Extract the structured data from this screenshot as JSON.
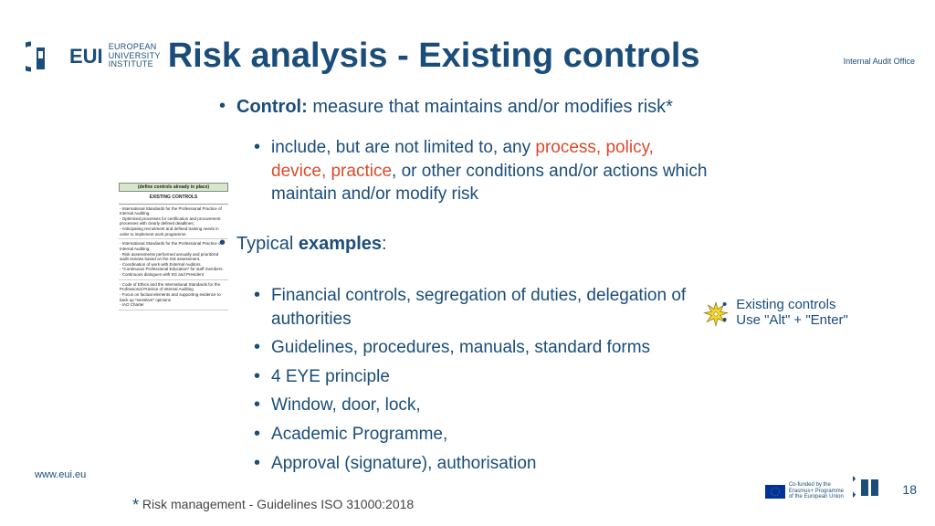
{
  "logo": {
    "eui": "EUI",
    "sub1": "EUROPEAN",
    "sub2": "UNIVERSITY",
    "sub3": "INSTITUTE"
  },
  "title": "Risk analysis - Existing controls",
  "iao": "Internal Audit Office",
  "bullet1_label": "Control:",
  "bullet1_text": " measure that maintains and/or modifies risk*",
  "bullet1_sub_pre": "include, but are not limited to, any ",
  "bullet1_sub_red": "process, policy, device, practice",
  "bullet1_sub_post": ", or other conditions and/or actions which maintain and/or modify risk",
  "bullet2_pre": "Typical ",
  "bullet2_bold": "examples",
  "bullet2_post": ":",
  "examples": [
    "Financial controls, segregation of duties, delegation of authorities",
    "Guidelines, procedures, manuals, standard forms",
    "4 EYE principle",
    "Window, door, lock,",
    "Academic Programme,",
    "Approval (signature), authorisation"
  ],
  "snippet": {
    "hdr1": "(define controls already in place)",
    "hdr2": "EXISTING CONTROLS",
    "b1": "- International Standards for the Professional Practice of Internal Auditing.\n- Optimized processes for certification and procurement processes with clearly defined deadlines;\n- Anticipating recruitment and defined training needs in order to implement work programme.",
    "b2": "- International Standards for the Professional Practice of Internal Auditing.\n- Risk assessments performed annually and prioritized audit reviews based on the risk assessment.\n- Coordination of work with External Auditors.\n- *Continuous Professional Education* for staff members.\n- Continuous dialogues with SG and President",
    "b3": "- Code of Ethics and the International Standards for the Professional Practice of Internal Auditing\n- Focus on factual elements and supporting evidence to back up *sensitive* opinions\n- IAO Charter"
  },
  "tip": [
    "Existing controls",
    "Use \"Alt\" + \"Enter\""
  ],
  "footer": {
    "url": "www.eui.eu",
    "note": "Risk management - Guidelines ISO 31000:2018",
    "eu1": "Co-funded by the",
    "eu2": "Erasmus+ Programme",
    "eu3": "of the European Union",
    "page": "18"
  },
  "colors": {
    "primary": "#1a4d7a",
    "accent": "#d94a2b",
    "snippet_header": "#d6e8c9",
    "spark": "#f2d530",
    "eu_flag": "#003399"
  }
}
